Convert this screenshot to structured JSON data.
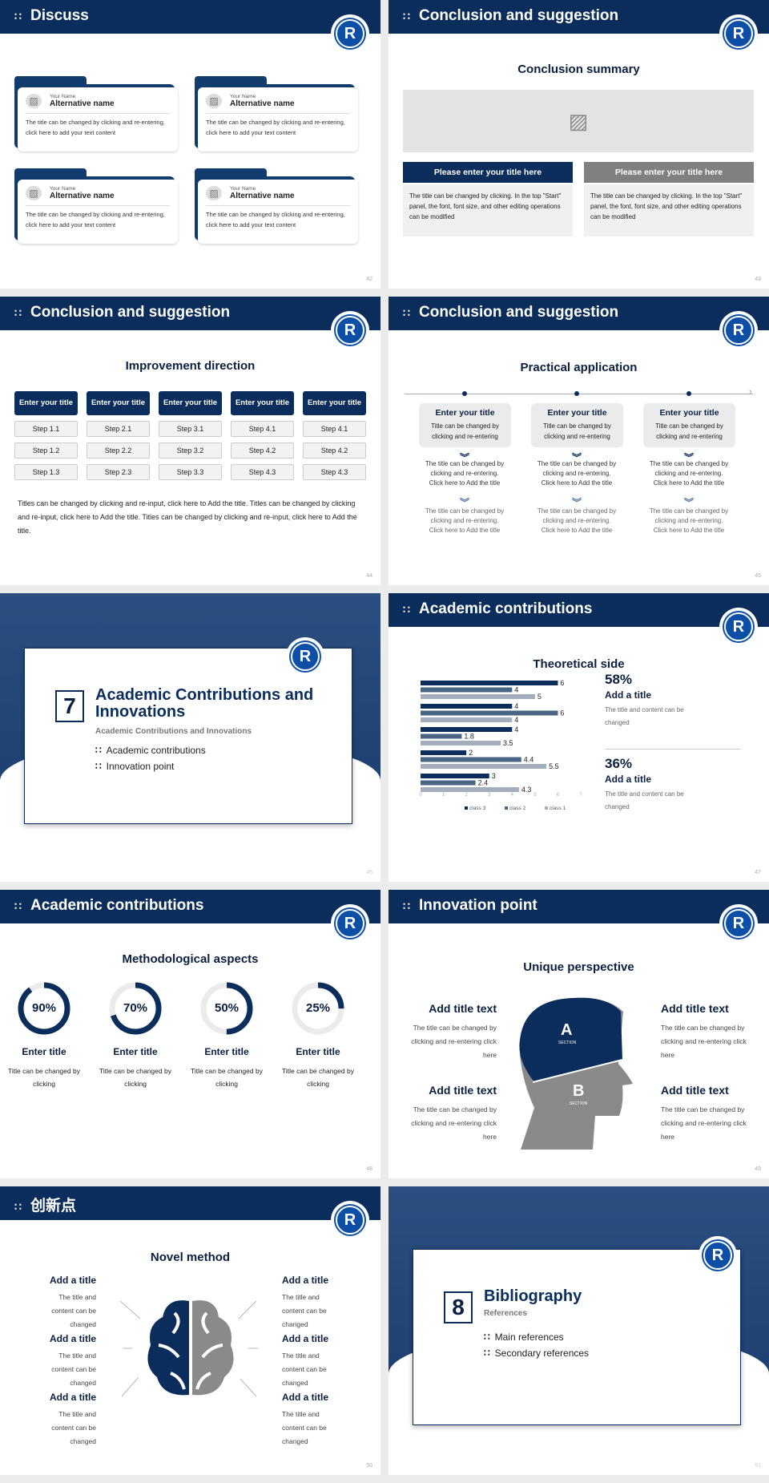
{
  "colors": {
    "navy": "#0b2d5b",
    "gray": "#8a8a8a",
    "light": "#ebebeb",
    "logo": "#0d4fa6"
  },
  "logo_text": "R",
  "slides": [
    {
      "header": "Discuss",
      "page": "42",
      "cards": [
        {
          "small": "Your Name",
          "name": "Alternative name",
          "text": "The title can be changed by clicking and re-entering, click here to add your text content"
        },
        {
          "small": "Your Name",
          "name": "Alternative name",
          "text": "The title can be changed by clicking and re-entering, click here to add your text content"
        },
        {
          "small": "Your Name",
          "name": "Alternative name",
          "text": "The title can be changed by clicking and re-entering, click here to add your text content"
        },
        {
          "small": "Your Name",
          "name": "Alternative name",
          "text": "The title can be changed by clicking and re-entering, click here to add your text content"
        }
      ]
    },
    {
      "header": "Conclusion and suggestion",
      "page": "43",
      "title": "Conclusion summary",
      "boxes": [
        {
          "title": "Please enter your title here",
          "text": "The title can be changed by clicking. In the top \"Start\" panel, the font, font size, and other editing operations can be modified"
        },
        {
          "title": "Please enter your title here",
          "text": "The title can be changed by clicking. In the top \"Start\" panel, the font, font size, and other editing operations can be modified"
        }
      ]
    },
    {
      "header": "Conclusion and suggestion",
      "page": "44",
      "title": "Improvement direction",
      "columns": [
        {
          "title": "Enter your title",
          "steps": [
            "Step 1.1",
            "Step 1.2",
            "Step 1.3"
          ]
        },
        {
          "title": "Enter your title",
          "steps": [
            "Step 2.1",
            "Step 2.2",
            "Step 2.3"
          ]
        },
        {
          "title": "Enter your title",
          "steps": [
            "Step 3.1",
            "Step 3.2",
            "Step 3.3"
          ]
        },
        {
          "title": "Enter your title",
          "steps": [
            "Step 4.1",
            "Step 4.2",
            "Step 4.3"
          ]
        },
        {
          "title": "Enter your title",
          "steps": [
            "Step 4.1",
            "Step 4.2",
            "Step 4.3"
          ]
        }
      ],
      "paragraph": "Titles can be changed by clicking and re-input, click here to Add the title. Titles can be changed by clicking and re-input, click here to Add the title. Titles can be changed by clicking and re-input, click here to Add the title."
    },
    {
      "header": "Conclusion and suggestion",
      "page": "45",
      "title": "Practical application",
      "items": [
        {
          "title": "Enter your title",
          "text": "Title can be changed by clicking and re-entering",
          "t1": "The title can be changed by clicking and re-entering. Click here to Add the title",
          "t2": "The title can be changed by clicking and re-entering. Click here to Add the title"
        },
        {
          "title": "Enter your title",
          "text": "Title can be changed by clicking and re-entering",
          "t1": "The title can be changed by clicking and re-entering. Click here to Add the title",
          "t2": "The title can be changed by clicking and re-entering. Click here to Add the title"
        },
        {
          "title": "Enter your title",
          "text": "Title can be changed by clicking and re-entering",
          "t1": "The title can be changed by clicking and re-entering. Click here to Add the title",
          "t2": "The title can be changed by clicking and re-entering. Click here to Add the title"
        }
      ]
    },
    {
      "page": "46",
      "number": "7",
      "title": "Academic Contributions and Innovations",
      "subtitle": "Academic Contributions and Innovations",
      "bullets": [
        "Academic contributions",
        "Innovation point"
      ]
    },
    {
      "header": "Academic contributions",
      "page": "47",
      "title": "Theoretical side",
      "stats": [
        {
          "value": "58%",
          "title": "Add a title",
          "text": "The title and content can be changed"
        },
        {
          "value": "36%",
          "title": "Add a title",
          "text": "The title and content can be changed"
        }
      ]
    },
    {
      "header": "Academic contributions",
      "page": "48",
      "title": "Methodological aspects",
      "rings": [
        {
          "value": 90,
          "label": "90%",
          "title": "Enter title",
          "text": "Title can be changed by clicking"
        },
        {
          "value": 70,
          "label": "70%",
          "title": "Enter title",
          "text": "Title can be changed by clicking"
        },
        {
          "value": 50,
          "label": "50%",
          "title": "Enter title",
          "text": "Title can be changed by clicking"
        },
        {
          "value": 25,
          "label": "25%",
          "title": "Enter title",
          "text": "Title can be changed by clicking"
        }
      ]
    },
    {
      "header": "Innovation point",
      "page": "49",
      "title": "Unique perspective",
      "section_a": "A",
      "section_b": "B",
      "section_word": "SECTION",
      "items": [
        {
          "title": "Add title text",
          "text": "The title can be changed by clicking and re-entering click here"
        },
        {
          "title": "Add title text",
          "text": "The title can be changed by clicking and re-entering click here"
        },
        {
          "title": "Add title text",
          "text": "The title can be changed by clicking and re-entering click here"
        },
        {
          "title": "Add title text",
          "text": "The title can be changed by clicking and re-entering click here"
        }
      ]
    },
    {
      "header": "创新点",
      "page": "50",
      "title": "Novel method",
      "items": [
        {
          "title": "Add a title",
          "text": "The title and content can be changed"
        },
        {
          "title": "Add a title",
          "text": "The title and content can be changed"
        },
        {
          "title": "Add a title",
          "text": "The title and content can be changed"
        },
        {
          "title": "Add a title",
          "text": "The title and content can be changed"
        },
        {
          "title": "Add a title",
          "text": "The title and content can be changed"
        },
        {
          "title": "Add a title",
          "text": "The title and content can be changed"
        }
      ]
    },
    {
      "page": "51",
      "number": "8",
      "title": "Bibliography",
      "subtitle": "References",
      "bullets": [
        "Main references",
        "Secondary references"
      ]
    }
  ],
  "chart_data": {
    "type": "bar",
    "orientation": "horizontal",
    "title": "Theoretical side",
    "xlim": [
      0,
      7
    ],
    "xticks": [
      0,
      1,
      2,
      3,
      4,
      5,
      6,
      7
    ],
    "legend": "bottom",
    "grid": false,
    "series": [
      {
        "name": "class 3",
        "color": "#0b2d5b",
        "values": [
          6,
          4,
          4,
          2,
          3
        ]
      },
      {
        "name": "class 2",
        "color": "#4a6584",
        "values": [
          4,
          6,
          1.8,
          4.4,
          2.4
        ]
      },
      {
        "name": "class 1",
        "color": "#a3adbb",
        "values": [
          5,
          4,
          3.5,
          5.5,
          4.3
        ]
      }
    ]
  }
}
